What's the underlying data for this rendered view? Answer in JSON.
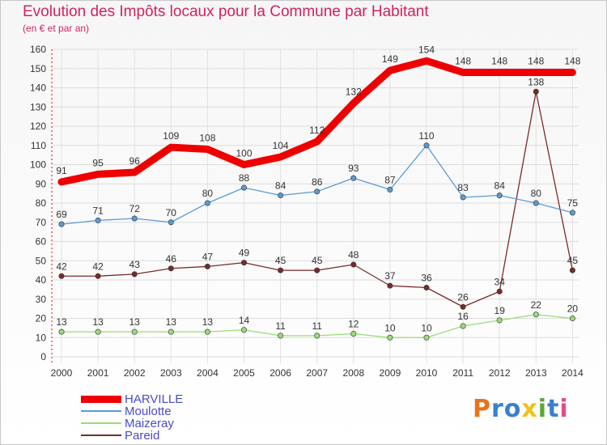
{
  "header": {
    "title": "Evolution des Impôts locaux pour la Commune par Habitant",
    "subtitle": "(en € et par an)"
  },
  "legend": {
    "items": [
      {
        "label": "HARVILLE",
        "color": "#ee0000"
      },
      {
        "label": "Moulotte",
        "color": "#5b9bd5"
      },
      {
        "label": "Maizeray",
        "color": "#99dd77"
      },
      {
        "label": "Pareid",
        "color": "#7a2a2a"
      }
    ]
  },
  "logo": {
    "text": "Proxiti",
    "colors": [
      "#e8731c",
      "#3a7fd0",
      "#3a7fd0",
      "#f0c020",
      "#5aa832",
      "#3a7fd0",
      "#e84a8a"
    ]
  },
  "chart_data": {
    "type": "line",
    "x": [
      "2000",
      "2001",
      "2002",
      "2003",
      "2004",
      "2005",
      "2006",
      "2007",
      "2008",
      "2009",
      "2010",
      "2011",
      "2012",
      "2013",
      "2014"
    ],
    "ylim": [
      0,
      160
    ],
    "yticks": [
      0,
      10,
      20,
      30,
      40,
      50,
      60,
      70,
      80,
      90,
      100,
      110,
      120,
      130,
      140,
      150,
      160
    ],
    "grid": true,
    "series": [
      {
        "name": "HARVILLE",
        "color": "#ee0000",
        "values": [
          91,
          95,
          96,
          109,
          108,
          100,
          104,
          112,
          132,
          149,
          154,
          148,
          148,
          148,
          148
        ]
      },
      {
        "name": "Moulotte",
        "color": "#5b9bd5",
        "values": [
          69,
          71,
          72,
          70,
          80,
          88,
          84,
          86,
          93,
          87,
          110,
          83,
          84,
          80,
          75
        ]
      },
      {
        "name": "Maizeray",
        "color": "#99dd77",
        "values": [
          13,
          13,
          13,
          13,
          13,
          14,
          11,
          11,
          12,
          10,
          10,
          16,
          19,
          22,
          20
        ]
      },
      {
        "name": "Pareid",
        "color": "#7a2a2a",
        "values": [
          42,
          42,
          43,
          46,
          47,
          49,
          45,
          45,
          48,
          37,
          36,
          26,
          34,
          138,
          45
        ]
      }
    ]
  }
}
